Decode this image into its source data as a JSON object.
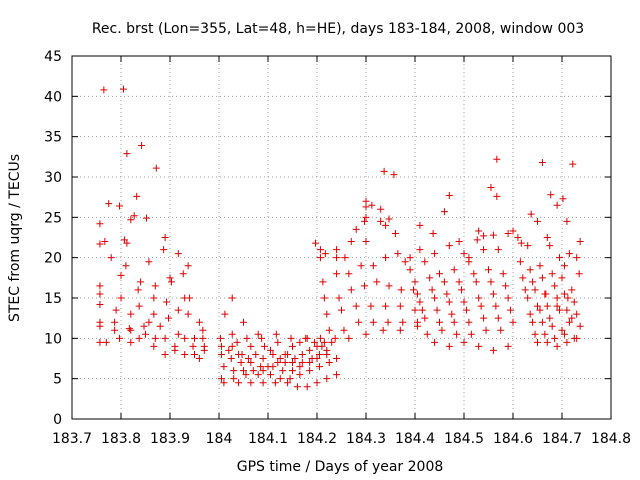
{
  "chart_data": {
    "type": "scatter",
    "title": "Rec. brst (Lon=355, Lat=48, h=HE), days 183-184, 2008, window 003",
    "xlabel": "GPS time / Days of year 2008",
    "ylabel": "STEC from uqrg / TECUs",
    "xlim": [
      183.7,
      184.8
    ],
    "ylim": [
      0,
      45
    ],
    "xticks": [
      183.7,
      183.8,
      183.9,
      184.0,
      184.1,
      184.2,
      184.3,
      184.4,
      184.5,
      184.6,
      184.7,
      184.8
    ],
    "xtick_labels": [
      "183.7",
      "183.8",
      "183.9",
      "184",
      "184.1",
      "184.2",
      "184.3",
      "184.4",
      "184.5",
      "184.6",
      "184.7",
      "184.8"
    ],
    "yticks": [
      0,
      5,
      10,
      15,
      20,
      25,
      30,
      35,
      40,
      45
    ],
    "ytick_labels": [
      "0",
      "5",
      "10",
      "15",
      "20",
      "25",
      "30",
      "35",
      "40",
      "45"
    ],
    "grid": true,
    "marker": "plus",
    "marker_color": "#e00000",
    "series": [
      {
        "x": [
          183.765,
          183.805,
          183.775,
          183.812,
          183.842,
          183.827,
          183.872,
          183.757,
          183.767,
          183.797,
          183.82,
          183.852,
          183.832,
          183.812,
          183.887,
          183.757,
          183.78,
          183.807,
          183.857,
          183.89,
          183.917,
          183.757,
          183.81,
          183.84,
          183.87,
          183.9,
          183.927,
          183.937,
          183.8,
          183.835,
          183.867,
          183.903,
          183.93,
          183.757,
          183.8,
          183.837,
          183.867,
          183.893,
          183.917,
          183.94,
          183.757,
          183.79,
          183.82,
          183.857,
          183.897,
          183.937,
          183.96,
          183.757,
          183.787,
          183.817,
          183.847,
          183.88,
          183.917,
          183.95,
          183.967,
          183.757,
          183.787,
          183.82,
          183.85,
          183.89,
          183.93,
          183.967,
          183.757,
          183.797,
          183.837,
          183.87,
          183.91,
          183.947,
          183.97,
          183.77,
          183.82,
          183.867,
          183.91,
          183.95,
          183.97,
          183.89,
          183.93,
          183.96,
          184.003,
          184.027,
          184.037,
          184.047,
          184.065,
          184.08,
          184.093,
          184.105,
          184.12,
          184.135,
          184.15,
          184.165,
          184.18,
          184.195,
          184.21,
          184.005,
          184.02,
          184.04,
          184.06,
          184.075,
          184.09,
          184.11,
          184.125,
          184.14,
          184.155,
          184.17,
          184.185,
          184.2,
          184.215,
          184.005,
          184.025,
          184.045,
          184.065,
          184.085,
          184.1,
          184.12,
          184.135,
          184.15,
          184.17,
          184.19,
          184.205,
          184.22,
          184.01,
          184.03,
          184.05,
          184.07,
          184.09,
          184.11,
          184.13,
          184.15,
          184.165,
          184.185,
          184.2,
          184.22,
          184.005,
          184.03,
          184.055,
          184.08,
          184.105,
          184.125,
          184.145,
          184.165,
          184.185,
          184.205,
          184.225,
          184.24,
          184.01,
          184.04,
          184.065,
          184.09,
          184.115,
          184.14,
          184.16,
          184.18,
          184.2,
          184.22,
          184.24,
          184.027,
          184.057,
          184.087,
          184.117,
          184.147,
          184.177,
          184.207,
          184.237,
          184.027,
          184.05,
          184.012,
          184.197,
          184.207,
          184.217,
          184.24,
          184.257,
          184.28,
          184.297,
          184.312,
          184.34,
          184.357,
          184.207,
          184.24,
          184.27,
          184.3,
          184.33,
          184.36,
          184.212,
          184.24,
          184.265,
          184.29,
          184.315,
          184.34,
          184.365,
          184.39,
          184.215,
          184.245,
          184.27,
          184.297,
          184.322,
          184.347,
          184.372,
          184.397,
          184.22,
          184.25,
          184.28,
          184.31,
          184.34,
          184.37,
          184.4,
          184.225,
          184.255,
          184.285,
          184.315,
          184.345,
          184.375,
          184.405,
          184.23,
          184.265,
          184.3,
          184.335,
          184.37,
          184.405,
          184.3,
          184.3,
          184.3,
          184.33,
          184.337,
          184.347,
          184.41,
          184.437,
          184.46,
          184.49,
          184.51,
          184.54,
          184.567,
          184.38,
          184.41,
          184.44,
          184.47,
          184.5,
          184.53,
          184.56,
          184.59,
          184.39,
          184.42,
          184.45,
          184.48,
          184.51,
          184.54,
          184.57,
          184.4,
          184.43,
          184.46,
          184.49,
          184.52,
          184.55,
          184.58,
          184.405,
          184.435,
          184.465,
          184.495,
          184.525,
          184.555,
          184.585,
          184.41,
          184.44,
          184.47,
          184.5,
          184.53,
          184.56,
          184.59,
          184.415,
          184.445,
          184.475,
          184.505,
          184.535,
          184.565,
          184.595,
          184.42,
          184.45,
          184.48,
          184.51,
          184.54,
          184.57,
          184.6,
          184.425,
          184.455,
          184.485,
          184.515,
          184.545,
          184.575,
          184.44,
          184.47,
          184.5,
          184.53,
          184.56,
          184.59,
          184.555,
          184.567,
          184.47,
          184.527,
          184.6,
          184.617,
          184.637,
          184.66,
          184.677,
          184.702,
          184.722,
          184.737,
          184.61,
          184.63,
          184.65,
          184.67,
          184.69,
          184.71,
          184.73,
          184.615,
          184.635,
          184.655,
          184.675,
          184.695,
          184.715,
          184.735,
          184.62,
          184.64,
          184.66,
          184.68,
          184.7,
          184.72,
          184.625,
          184.645,
          184.665,
          184.685,
          184.705,
          184.725,
          184.63,
          184.65,
          184.67,
          184.69,
          184.71,
          184.73,
          184.635,
          184.655,
          184.675,
          184.695,
          184.715,
          184.64,
          184.66,
          184.68,
          184.7,
          184.72,
          184.737,
          184.645,
          184.665,
          184.685,
          184.705,
          184.725,
          184.65,
          184.67,
          184.69,
          184.71,
          184.73,
          184.667,
          184.712,
          184.69,
          184.705
        ],
        "y": [
          40.8,
          40.9,
          26.7,
          32.9,
          33.9,
          25.2,
          31.1,
          24.2,
          22.0,
          26.4,
          24.7,
          24.9,
          27.6,
          21.8,
          21.0,
          21.7,
          20.0,
          22.2,
          19.5,
          22.5,
          20.5,
          16.5,
          19.0,
          17.0,
          16.5,
          17.5,
          18.0,
          19.0,
          17.8,
          16.0,
          15.0,
          17.0,
          15.0,
          15.5,
          15.0,
          14.0,
          13.0,
          14.5,
          13.5,
          15.0,
          14.2,
          13.5,
          13.0,
          12.0,
          12.5,
          13.0,
          12.0,
          12.0,
          12.0,
          11.2,
          11.5,
          11.5,
          10.5,
          10.0,
          11.0,
          11.5,
          11.0,
          11.0,
          10.5,
          10.0,
          10.0,
          10.0,
          9.5,
          10.0,
          10.0,
          10.0,
          9.0,
          9.0,
          9.0,
          9.5,
          9.5,
          9.0,
          8.5,
          8.0,
          8.5,
          8.0,
          8.0,
          7.5,
          10.0,
          9.0,
          9.5,
          8.0,
          9.0,
          10.5,
          9.0,
          8.5,
          9.5,
          8.0,
          9.0,
          9.5,
          10.0,
          9.5,
          9.0,
          9.0,
          8.5,
          8.0,
          7.5,
          8.0,
          7.5,
          8.0,
          7.5,
          8.0,
          7.5,
          8.0,
          8.5,
          9.0,
          9.5,
          8.0,
          7.5,
          7.0,
          7.0,
          6.5,
          6.5,
          7.0,
          7.0,
          7.0,
          7.0,
          7.5,
          8.0,
          8.5,
          6.5,
          6.0,
          6.0,
          6.0,
          6.0,
          6.5,
          6.0,
          6.0,
          6.5,
          7.0,
          7.5,
          8.0,
          5.0,
          5.0,
          5.5,
          5.5,
          5.5,
          5.0,
          5.0,
          5.5,
          6.0,
          6.5,
          7.0,
          7.5,
          4.5,
          4.5,
          4.5,
          4.5,
          4.5,
          4.5,
          4.0,
          4.0,
          4.5,
          5.0,
          5.5,
          10.5,
          10.0,
          10.0,
          10.5,
          10.0,
          10.0,
          10.0,
          10.0,
          15.0,
          12.0,
          13.0,
          21.8,
          21.0,
          20.5,
          21.0,
          20.0,
          23.5,
          24.5,
          26.5,
          24.0,
          30.3,
          20.0,
          20.0,
          22.0,
          22.0,
          24.5,
          23.0,
          17.0,
          18.0,
          18.0,
          19.0,
          19.0,
          20.0,
          20.5,
          20.0,
          15.0,
          15.0,
          16.0,
          16.5,
          17.0,
          16.5,
          16.0,
          16.0,
          13.0,
          13.5,
          14.0,
          14.0,
          14.0,
          14.0,
          13.5,
          11.0,
          11.0,
          12.0,
          12.0,
          12.0,
          12.0,
          12.0,
          9.5,
          10.0,
          10.5,
          11.0,
          11.0,
          11.5,
          27.0,
          26.3,
          25.0,
          26.0,
          30.7,
          24.8,
          24.0,
          23.0,
          25.7,
          22.0,
          20.0,
          22.7,
          32.2,
          19.5,
          21.0,
          20.5,
          21.5,
          20.5,
          23.3,
          22.8,
          23.0,
          18.5,
          19.5,
          18.0,
          18.5,
          19.5,
          21.0,
          21.0,
          17.0,
          17.5,
          17.0,
          17.0,
          18.0,
          18.5,
          18.0,
          15.5,
          16.0,
          15.5,
          16.0,
          17.0,
          17.0,
          16.5,
          14.5,
          15.0,
          14.5,
          14.5,
          15.0,
          15.5,
          15.0,
          13.5,
          13.5,
          13.0,
          13.5,
          14.0,
          14.0,
          13.5,
          12.5,
          12.0,
          12.0,
          12.0,
          12.5,
          12.5,
          12.0,
          10.5,
          11.0,
          10.5,
          10.5,
          11.0,
          11.0,
          9.5,
          9.0,
          9.5,
          9.0,
          8.5,
          9.0,
          28.7,
          27.6,
          27.7,
          22.2,
          23.3,
          21.8,
          25.4,
          31.8,
          27.8,
          27.3,
          31.6,
          22.0,
          22.5,
          21.5,
          24.5,
          22.5,
          26.5,
          24.5,
          20.0,
          19.5,
          18.5,
          19.0,
          21.5,
          20.0,
          20.5,
          18.0,
          17.5,
          17.0,
          17.5,
          18.0,
          17.5,
          16.0,
          16.0,
          16.0,
          15.5,
          16.5,
          15.5,
          14.5,
          15.0,
          14.0,
          14.0,
          15.0,
          13.5,
          13.0,
          13.0,
          13.5,
          12.5,
          13.5,
          12.0,
          12.0,
          12.0,
          11.5,
          11.0,
          12.5,
          11.5,
          10.5,
          10.5,
          10.0,
          10.5,
          10.0,
          9.5,
          9.5,
          9.0,
          9.5,
          10.0,
          15.5,
          15.0,
          14.0,
          19.0
        ]
      }
    ]
  }
}
